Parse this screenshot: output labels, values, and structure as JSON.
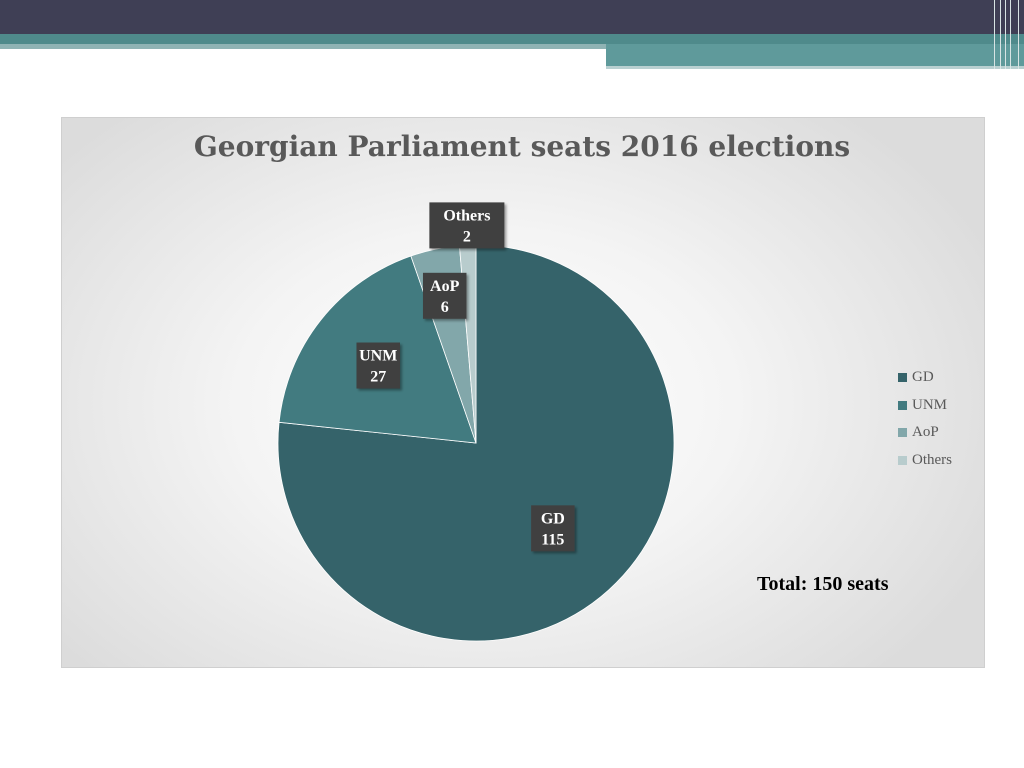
{
  "chart_data": {
    "type": "pie",
    "title": "Georgian Parliament seats 2016 elections",
    "slices": [
      {
        "name": "GD",
        "value": 115,
        "color": "#35636a"
      },
      {
        "name": "UNM",
        "value": 27,
        "color": "#427b80"
      },
      {
        "name": "AoP",
        "value": 6,
        "color": "#82a7aa"
      },
      {
        "name": "Others",
        "value": 2,
        "color": "#b8cccd"
      }
    ],
    "legend_position": "right",
    "annotation": "Total: 150 seats"
  }
}
